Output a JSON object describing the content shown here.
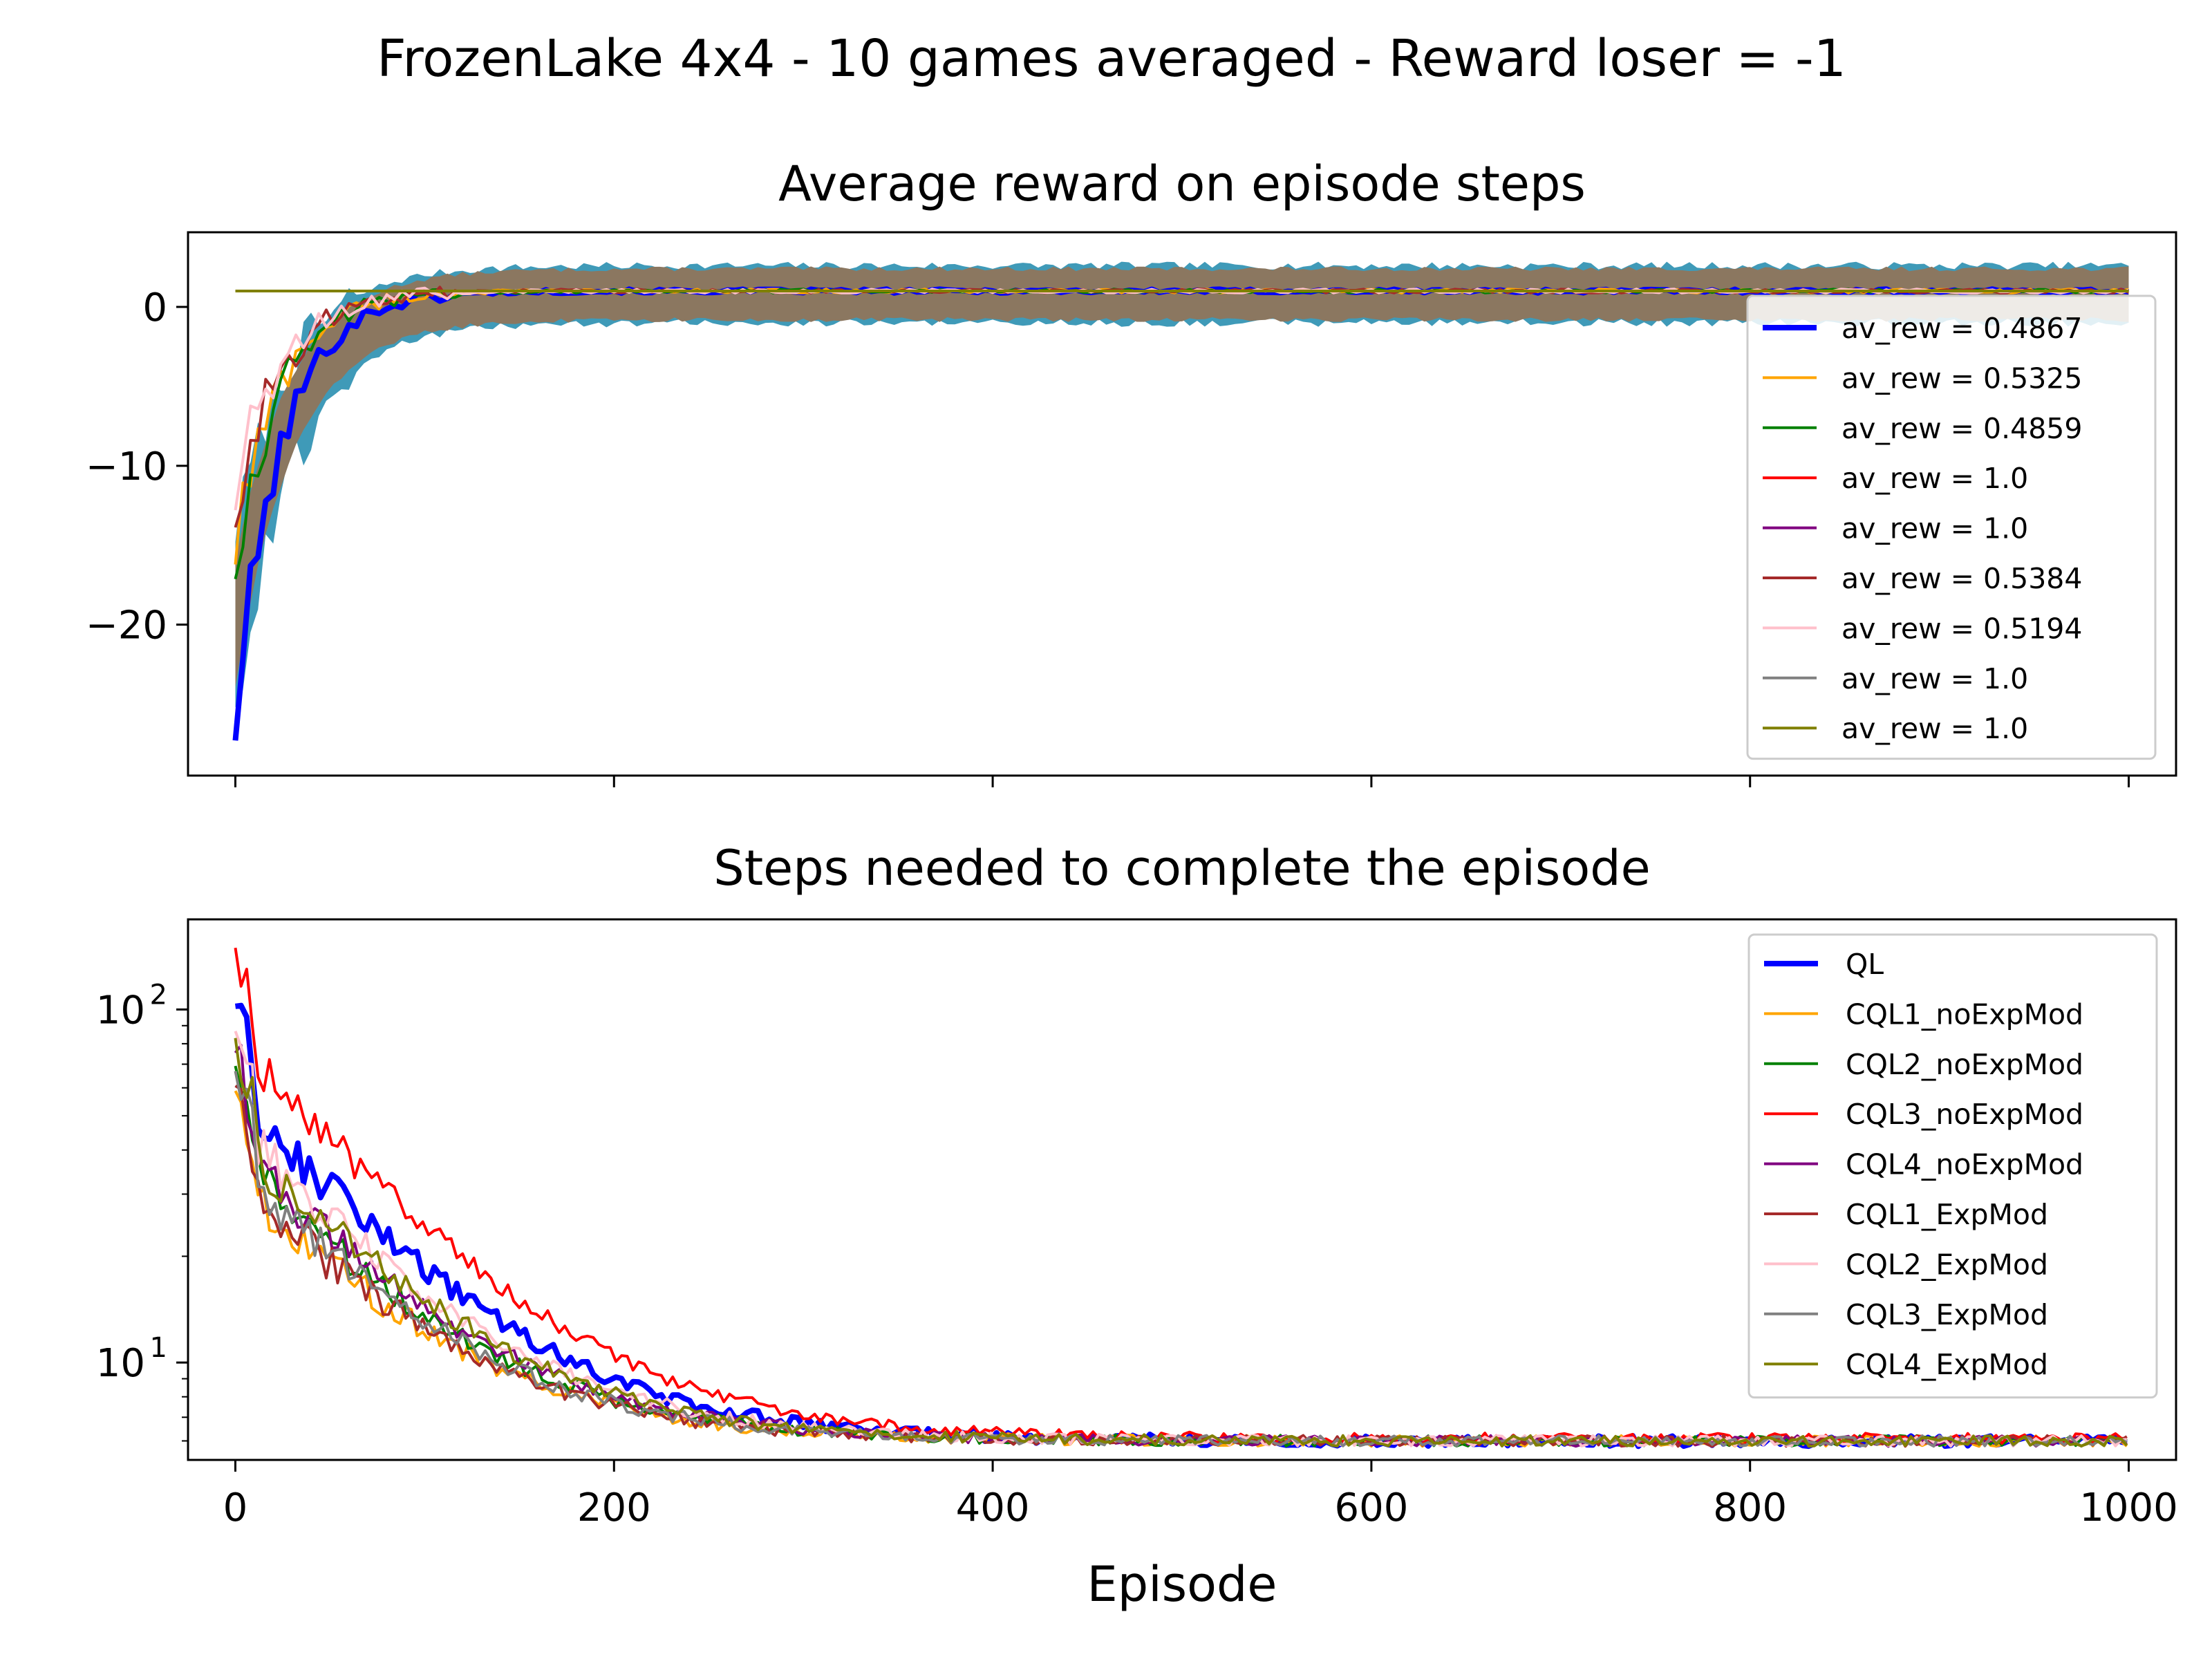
{
  "figure": {
    "suptitle": "FrozenLake 4x4 - 10 games averaged - Reward loser = -1"
  },
  "chart_data": [
    {
      "type": "line",
      "title": "Average reward on episode steps",
      "xlabel": "",
      "ylabel": "",
      "xlim": [
        -25,
        1025
      ],
      "ylim": [
        -29.5,
        4.7
      ],
      "x_ticks": [
        0,
        200,
        400,
        600,
        800,
        1000
      ],
      "x_tick_labels_shown": false,
      "y_ticks": [
        0,
        -10,
        -20
      ],
      "y_tick_labels": [
        "0",
        "−10",
        "−20"
      ],
      "legend_position": "right",
      "band": {
        "color": "#8b7760",
        "lower": -1.0,
        "upper": 2.6,
        "note_color_edge": "#2a8fb0"
      },
      "series": [
        {
          "label": "av_rew = 0.4867",
          "color": "#0000ff",
          "start": -26,
          "final": 1.0,
          "width": 8
        },
        {
          "label": "av_rew = 0.5325",
          "color": "#ffa500",
          "start": -15,
          "final": 1.0,
          "width": 4
        },
        {
          "label": "av_rew = 0.4859",
          "color": "#008000",
          "start": -16,
          "final": 1.0,
          "width": 4
        },
        {
          "label": "av_rew = 1.0",
          "color": "#ff0000",
          "start": 1.0,
          "final": 1.0,
          "width": 4
        },
        {
          "label": "av_rew = 1.0",
          "color": "#800080",
          "start": 1.0,
          "final": 1.0,
          "width": 4
        },
        {
          "label": "av_rew = 0.5384",
          "color": "#a52a2a",
          "start": -13,
          "final": 1.0,
          "width": 4
        },
        {
          "label": "av_rew = 0.5194",
          "color": "#ffc0cb",
          "start": -12,
          "final": 1.0,
          "width": 4
        },
        {
          "label": "av_rew = 1.0",
          "color": "#808080",
          "start": 1.0,
          "final": 1.0,
          "width": 4
        },
        {
          "label": "av_rew = 1.0",
          "color": "#808000",
          "start": 1.0,
          "final": 1.0,
          "width": 4
        }
      ]
    },
    {
      "type": "line",
      "title": "Steps needed to complete the episode",
      "xlabel": "Episode",
      "ylabel": "",
      "yscale": "log",
      "xlim": [
        -25,
        1025
      ],
      "ylim": [
        5.3,
        180
      ],
      "x_ticks": [
        0,
        200,
        400,
        600,
        800,
        1000
      ],
      "x_tick_labels": [
        "0",
        "200",
        "400",
        "600",
        "800",
        "1000"
      ],
      "y_major_ticks": [
        10,
        100
      ],
      "y_major_tick_labels": [
        {
          "base": "10",
          "exp": "1"
        },
        {
          "base": "10",
          "exp": "2"
        }
      ],
      "legend_position": "right",
      "series": [
        {
          "label": "QL",
          "color": "#0000ff",
          "start": 105,
          "final": 6.0,
          "width": 8
        },
        {
          "label": "CQL1_noExpMod",
          "color": "#ffa500",
          "start": 60,
          "final": 6.0,
          "width": 4
        },
        {
          "label": "CQL2_noExpMod",
          "color": "#008000",
          "start": 70,
          "final": 6.0,
          "width": 4
        },
        {
          "label": "CQL3_noExpMod",
          "color": "#ff0000",
          "start": 150,
          "final": 6.1,
          "width": 4
        },
        {
          "label": "CQL4_noExpMod",
          "color": "#800080",
          "start": 75,
          "final": 6.0,
          "width": 4
        },
        {
          "label": "CQL1_ExpMod",
          "color": "#a52a2a",
          "start": 60,
          "final": 6.0,
          "width": 4
        },
        {
          "label": "CQL2_ExpMod",
          "color": "#ffc0cb",
          "start": 85,
          "final": 6.0,
          "width": 4
        },
        {
          "label": "CQL3_ExpMod",
          "color": "#808080",
          "start": 65,
          "final": 6.0,
          "width": 4
        },
        {
          "label": "CQL4_ExpMod",
          "color": "#808000",
          "start": 80,
          "final": 6.0,
          "width": 4
        }
      ]
    }
  ]
}
